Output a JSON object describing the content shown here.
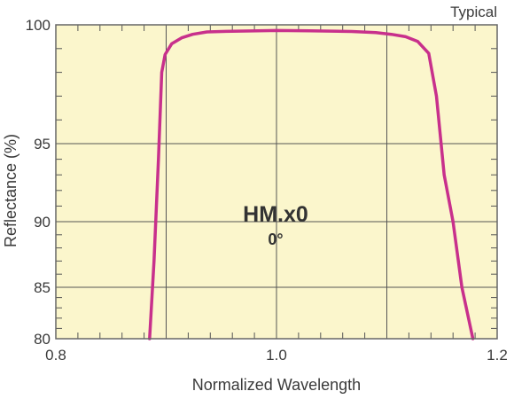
{
  "chart_data": {
    "type": "line",
    "note": "Typical",
    "xlabel": "Normalized Wavelength",
    "ylabel": "Reflectance (%)",
    "xlim": [
      0.8,
      1.2
    ],
    "ylim": [
      80,
      100
    ],
    "y_scale": "nonlinear",
    "x_ticks": [
      0.8,
      1.0,
      1.2
    ],
    "x_tick_labels": [
      "0.8",
      "1.0",
      "1.2"
    ],
    "y_ticks": [
      80,
      85,
      90,
      95,
      100
    ],
    "y_tick_labels": [
      "80",
      "85",
      "90",
      "95",
      "100"
    ],
    "grid": true,
    "annotation": {
      "title": "HM.x0",
      "subtitle": "0°"
    },
    "colors": {
      "plot_background": "#fbf6cc",
      "grid": "#555555",
      "frame": "#666666",
      "line": "#c8308c"
    },
    "series": [
      {
        "x": [
          0.885,
          0.889,
          0.893,
          0.896,
          0.899,
          0.905,
          0.914,
          0.924,
          0.937,
          0.96,
          1.0,
          1.03,
          1.068,
          1.09,
          1.104,
          1.117,
          1.128,
          1.138,
          1.145,
          1.152,
          1.16,
          1.168,
          1.178
        ],
        "y": [
          80.0,
          87.0,
          94.0,
          98.0,
          98.75,
          99.2,
          99.45,
          99.6,
          99.7,
          99.73,
          99.76,
          99.75,
          99.72,
          99.67,
          99.6,
          99.5,
          99.3,
          98.8,
          97.0,
          93.0,
          90.0,
          85.0,
          80.0
        ]
      }
    ]
  }
}
